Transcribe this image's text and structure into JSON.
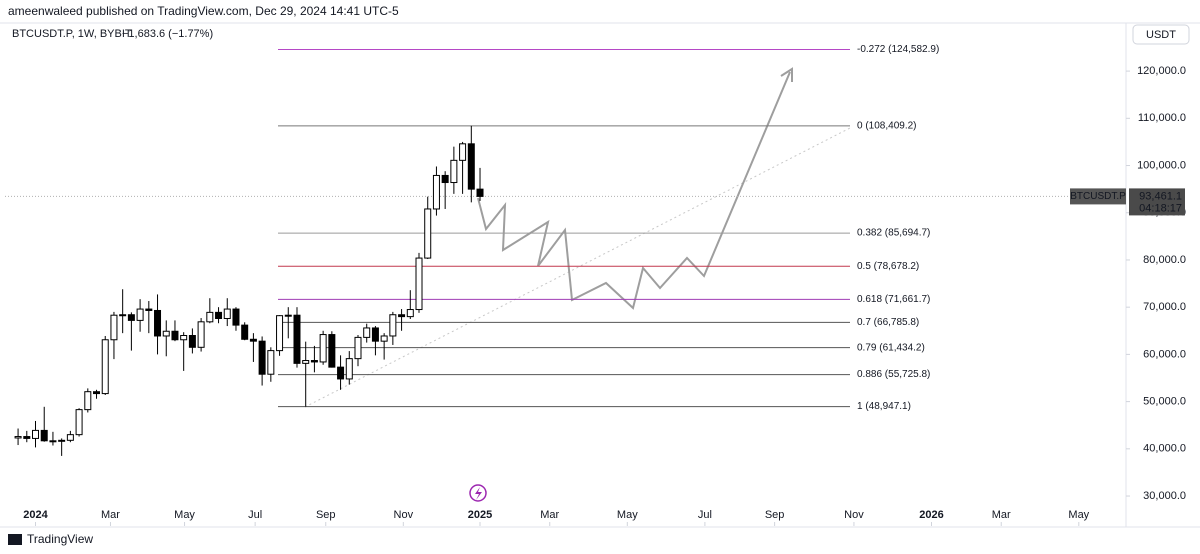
{
  "header": {
    "published": "ameenwaleed published on TradingView.com, Dec 29, 2024 14:41 UTC-5"
  },
  "footer": {
    "brand": "TradingView"
  },
  "chart_data": {
    "type": "candlestick",
    "title": "BTCUSDT.P, 1W, BYBIT",
    "change": "−1,683.6 (−1.77%)",
    "currency": "USDT",
    "up_color": "#ffffff",
    "down_color": "#000000",
    "open": [
      42300,
      42600,
      42200,
      43900,
      41700,
      41600,
      41800,
      43000,
      48300,
      52100,
      51700,
      63100,
      68300,
      68400,
      67200,
      69600,
      69300,
      63900,
      64900,
      63100,
      64000,
      61500,
      66900,
      68900,
      67600,
      69600,
      66200,
      63200,
      62800,
      55800,
      60800,
      68200,
      68300,
      58100,
      58700,
      58400,
      64200,
      57300,
      54800,
      59100,
      63600,
      65600,
      62800,
      63900,
      68400,
      68000,
      69500,
      80400,
      90800,
      97900,
      96400,
      101100,
      104600,
      95000
    ],
    "high": [
      44300,
      43800,
      45900,
      48900,
      43600,
      42200,
      43800,
      48600,
      52800,
      52500,
      63900,
      69000,
      73800,
      68900,
      71700,
      71300,
      72700,
      67200,
      67200,
      64700,
      65500,
      67700,
      71900,
      70000,
      71900,
      70000,
      66800,
      64500,
      63800,
      61500,
      68300,
      70000,
      70000,
      62700,
      61800,
      65000,
      64900,
      59800,
      60700,
      64100,
      66500,
      66000,
      64500,
      69000,
      69600,
      73600,
      81500,
      93400,
      99800,
      98800,
      104000,
      105000,
      108409.2,
      99500
    ],
    "low": [
      40800,
      41400,
      40300,
      41500,
      40700,
      38500,
      41400,
      42600,
      47700,
      50600,
      51400,
      59000,
      64500,
      60800,
      64800,
      64500,
      60000,
      59600,
      62800,
      56500,
      60200,
      60600,
      66600,
      66600,
      66000,
      65000,
      63000,
      58400,
      53400,
      54200,
      59700,
      63400,
      57200,
      48947.1,
      56200,
      57800,
      57200,
      52500,
      53600,
      57500,
      62500,
      59800,
      58900,
      62000,
      65000,
      67500,
      68800,
      80200,
      89400,
      90800,
      94000,
      94000,
      92200,
      92500
    ],
    "close": [
      42600,
      42200,
      43900,
      41700,
      41600,
      41800,
      43000,
      48300,
      52100,
      51700,
      63100,
      68300,
      68400,
      67200,
      69600,
      69300,
      63900,
      64900,
      63100,
      64000,
      61500,
      66900,
      68900,
      67600,
      69600,
      66200,
      63200,
      62800,
      55800,
      60800,
      68200,
      68300,
      58100,
      58700,
      58400,
      64200,
      57300,
      54800,
      59100,
      63600,
      65600,
      62800,
      63900,
      68400,
      68000,
      69500,
      80400,
      90800,
      97900,
      96400,
      101100,
      104600,
      95000,
      93461.1
    ],
    "xlim": [
      -1.5,
      127
    ],
    "xticks": [
      {
        "value": 2,
        "label": "2024"
      },
      {
        "value": 10.6,
        "label": "Mar"
      },
      {
        "value": 19.1,
        "label": "May"
      },
      {
        "value": 27.2,
        "label": "Jul"
      },
      {
        "value": 35.3,
        "label": "Sep"
      },
      {
        "value": 44.2,
        "label": "Nov"
      },
      {
        "value": 53,
        "label": "2025"
      },
      {
        "value": 61,
        "label": "Mar"
      },
      {
        "value": 69.9,
        "label": "May"
      },
      {
        "value": 78.8,
        "label": "Jul"
      },
      {
        "value": 86.8,
        "label": "Sep"
      },
      {
        "value": 95.9,
        "label": "Nov"
      },
      {
        "value": 104.8,
        "label": "2026"
      },
      {
        "value": 112.8,
        "label": "Mar"
      },
      {
        "value": 121.7,
        "label": "May"
      }
    ],
    "ylim": [
      24500,
      130400
    ],
    "yticks": [
      {
        "value": 30000,
        "label": "30,000.0"
      },
      {
        "value": 40000,
        "label": "40,000.0"
      },
      {
        "value": 50000,
        "label": "50,000.0"
      },
      {
        "value": 60000,
        "label": "60,000.0"
      },
      {
        "value": 70000,
        "label": "70,000.0"
      },
      {
        "value": 80000,
        "label": "80,000.0"
      },
      {
        "value": 90000,
        "label": "90,000.0"
      },
      {
        "value": 100000,
        "label": "100,000.0"
      },
      {
        "value": 110000,
        "label": "110,000.0"
      },
      {
        "value": 120000,
        "label": "120,000.0"
      }
    ],
    "fib_levels": [
      {
        "value": 124582.9,
        "label": "-0.272 (124,582.9)",
        "color": "#b548c6"
      },
      {
        "value": 108409.2,
        "label": "0 (108,409.2)",
        "color": "#787878"
      },
      {
        "value": 85694.7,
        "label": "0.382 (85,694.7)",
        "color": "#9a9a9a"
      },
      {
        "value": 78678.2,
        "label": "0.5 (78,678.2)",
        "color": "#c2394f"
      },
      {
        "value": 71661.7,
        "label": "0.618 (71,661.7)",
        "color": "#a03bb5"
      },
      {
        "value": 66785.8,
        "label": "0.7 (66,785.8)",
        "color": "#555555"
      },
      {
        "value": 61434.2,
        "label": "0.79 (61,434.2)",
        "color": "#555555"
      },
      {
        "value": 55725.8,
        "label": "0.886 (55,725.8)",
        "color": "#555555"
      },
      {
        "value": 48947.1,
        "label": "1 (48,947.1)",
        "color": "#555555"
      }
    ],
    "price_line": {
      "name": "BTCUSDT.P",
      "value": 93461.1,
      "label": "93,461.1",
      "countdown": "04:18:17"
    }
  }
}
